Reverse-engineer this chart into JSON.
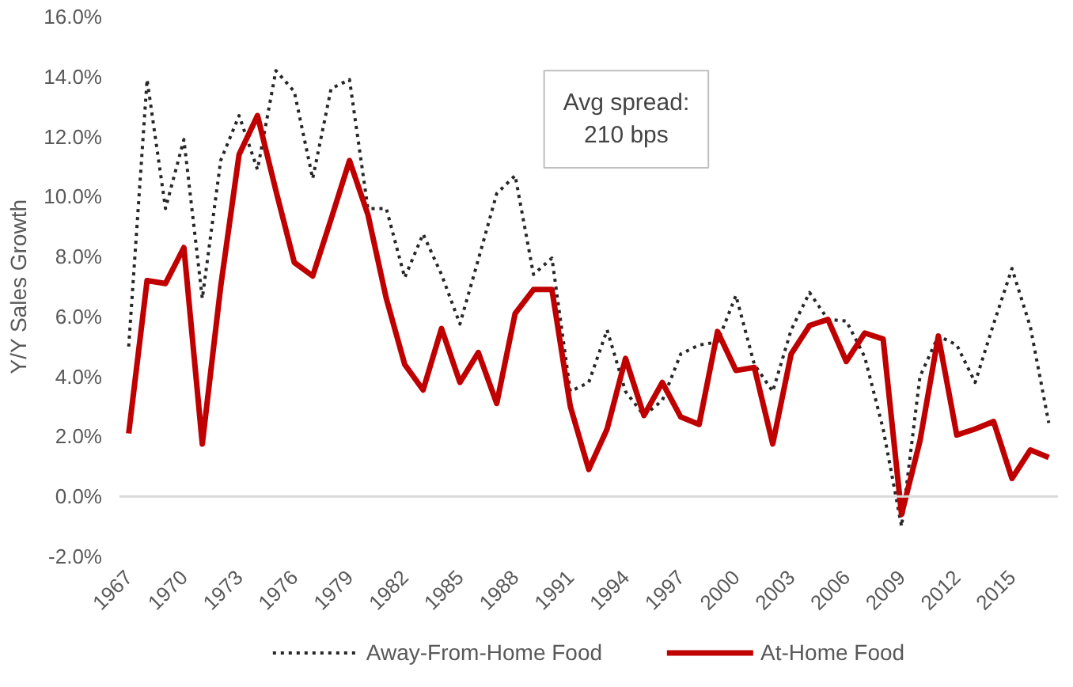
{
  "chart_data": {
    "type": "line",
    "ylabel": "Y/Y Sales Growth",
    "x": [
      1967,
      1968,
      1969,
      1970,
      1971,
      1972,
      1973,
      1974,
      1975,
      1976,
      1977,
      1978,
      1979,
      1980,
      1981,
      1982,
      1983,
      1984,
      1985,
      1986,
      1987,
      1988,
      1989,
      1990,
      1991,
      1992,
      1993,
      1994,
      1995,
      1996,
      1997,
      1998,
      1999,
      2000,
      2001,
      2002,
      2003,
      2004,
      2005,
      2006,
      2007,
      2008,
      2009,
      2010,
      2011,
      2012,
      2013,
      2014,
      2015,
      2016,
      2017
    ],
    "series": [
      {
        "name": "Away-From-Home Food",
        "color": "#262626",
        "line_style": "dotted",
        "values": [
          5.0,
          13.9,
          9.6,
          11.9,
          6.6,
          11.2,
          12.7,
          10.9,
          14.2,
          13.5,
          10.6,
          13.6,
          13.9,
          9.6,
          9.6,
          7.3,
          8.75,
          7.4,
          5.75,
          7.9,
          10.1,
          10.7,
          7.4,
          7.95,
          3.5,
          3.8,
          5.55,
          3.5,
          2.7,
          3.2,
          4.75,
          5.05,
          5.15,
          6.7,
          4.4,
          3.5,
          5.55,
          6.8,
          5.9,
          5.85,
          4.65,
          2.25,
          -1.0,
          4.0,
          5.35,
          5.05,
          3.8,
          5.75,
          7.6,
          5.65,
          2.45
        ]
      },
      {
        "name": "At-Home Food",
        "color": "#c00000",
        "line_style": "solid",
        "values": [
          2.1,
          7.2,
          7.1,
          8.3,
          1.75,
          7.0,
          11.4,
          12.7,
          10.2,
          7.8,
          7.35,
          9.25,
          11.2,
          9.4,
          6.6,
          4.4,
          3.55,
          5.6,
          3.8,
          4.8,
          3.1,
          6.1,
          6.9,
          6.9,
          3.0,
          0.9,
          2.25,
          4.6,
          2.7,
          3.8,
          2.65,
          2.4,
          5.5,
          4.2,
          4.3,
          1.75,
          4.75,
          5.7,
          5.9,
          4.5,
          5.45,
          5.25,
          -0.6,
          1.85,
          5.35,
          2.05,
          2.25,
          2.5,
          0.6,
          1.55,
          1.3
        ]
      }
    ],
    "xlim": [
      1966.5,
      2017.5
    ],
    "xticks": [
      1967,
      1970,
      1973,
      1976,
      1979,
      1982,
      1985,
      1988,
      1991,
      1994,
      1997,
      2000,
      2003,
      2006,
      2009,
      2012,
      2015
    ],
    "ylim": [
      -2,
      16
    ],
    "yticks": [
      {
        "value": -2,
        "label": "-2.0%"
      },
      {
        "value": 0,
        "label": "0.0%"
      },
      {
        "value": 2,
        "label": "2.0%"
      },
      {
        "value": 4,
        "label": "4.0%"
      },
      {
        "value": 6,
        "label": "6.0%"
      },
      {
        "value": 8,
        "label": "8.0%"
      },
      {
        "value": 10,
        "label": "10.0%"
      },
      {
        "value": 12,
        "label": "12.0%"
      },
      {
        "value": 14,
        "label": "14.0%"
      },
      {
        "value": 16,
        "label": "16.0%"
      }
    ],
    "ref_lines": [
      {
        "axis": "y",
        "value": 0,
        "label": null,
        "color": "#d9d9d9"
      }
    ],
    "annotations": [
      "Avg spread:\n210 bps"
    ],
    "grid": false,
    "legend": "bottom",
    "marker": "none"
  }
}
